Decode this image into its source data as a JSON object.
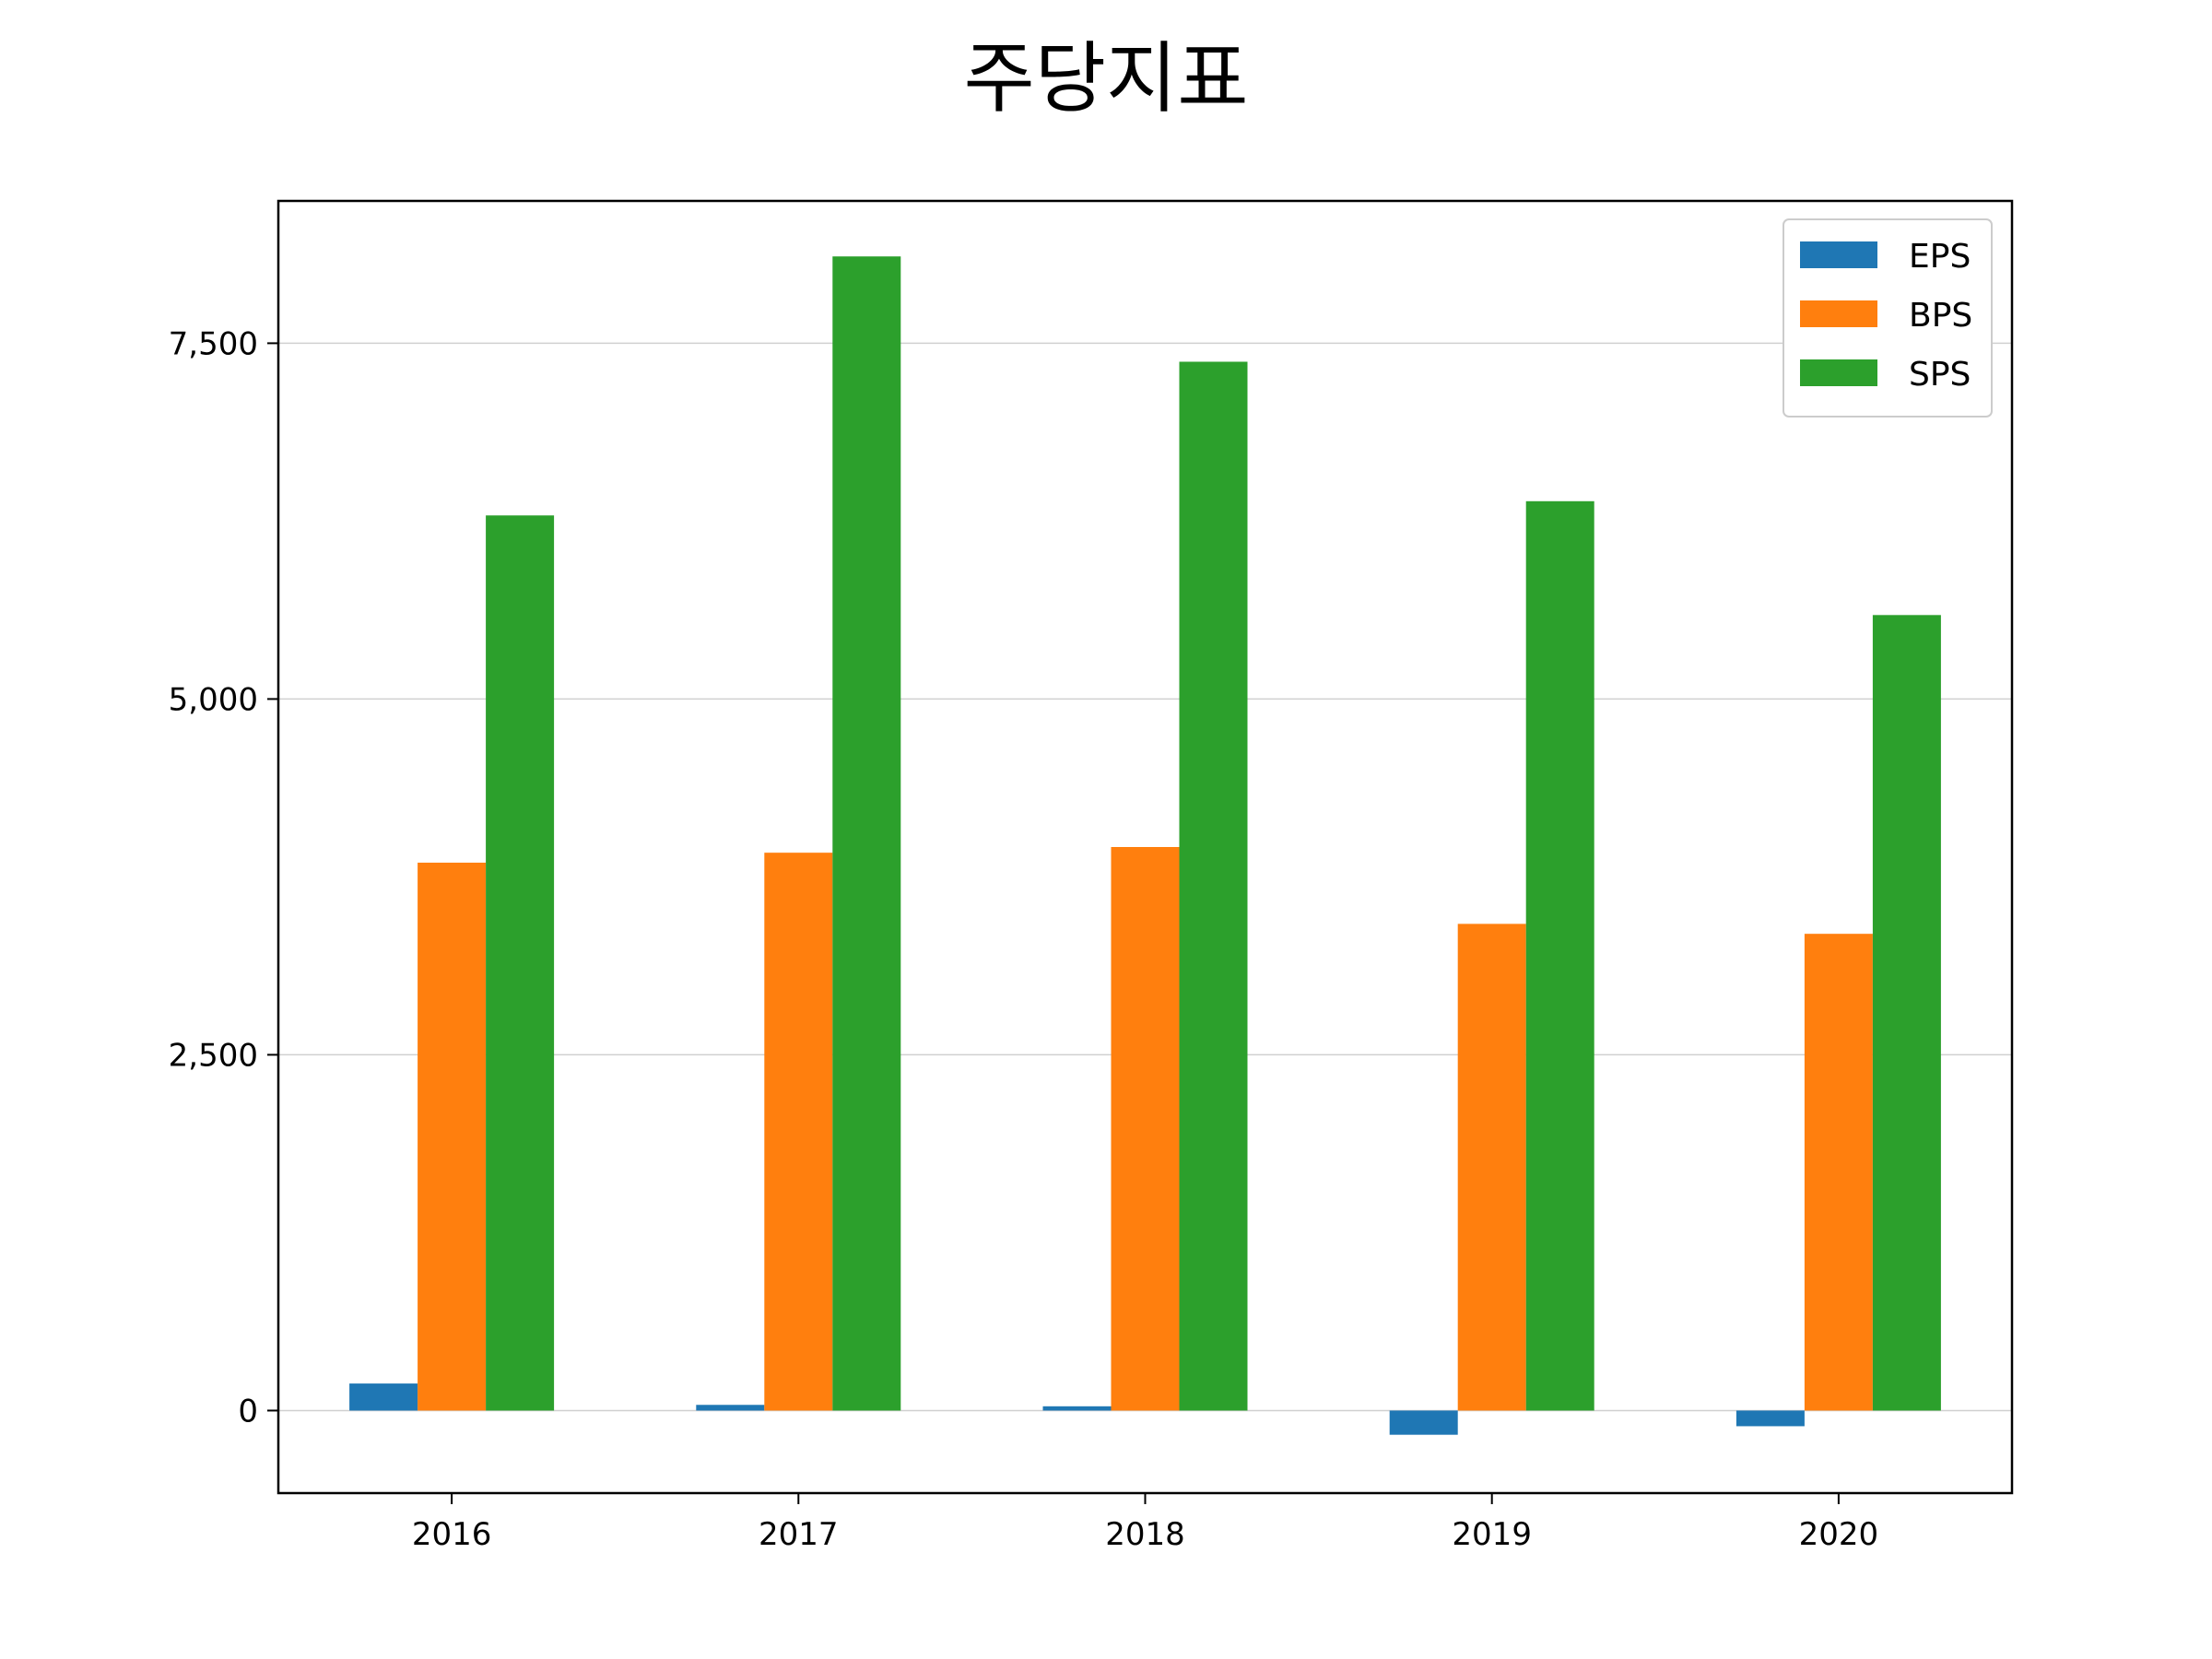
{
  "title": "주당지표",
  "chart_data": {
    "type": "bar",
    "title": "주당지표",
    "xlabel": "",
    "ylabel": "",
    "categories": [
      "2016",
      "2017",
      "2018",
      "2019",
      "2020"
    ],
    "series": [
      {
        "name": "EPS",
        "color": "#1f77b4",
        "values": [
          190,
          40,
          30,
          -170,
          -110
        ]
      },
      {
        "name": "BPS",
        "color": "#ff7f0e",
        "values": [
          3850,
          3920,
          3960,
          3420,
          3350
        ]
      },
      {
        "name": "SPS",
        "color": "#2ca02c",
        "values": [
          6290,
          8110,
          7370,
          6390,
          5590
        ]
      }
    ],
    "ylim": [
      -580,
      8500
    ],
    "yticks": [
      0,
      2500,
      5000,
      7500
    ],
    "ytick_labels": [
      "0",
      "2,500",
      "5,000",
      "7,500"
    ],
    "grid": "horizontal",
    "legend": "top-right"
  }
}
